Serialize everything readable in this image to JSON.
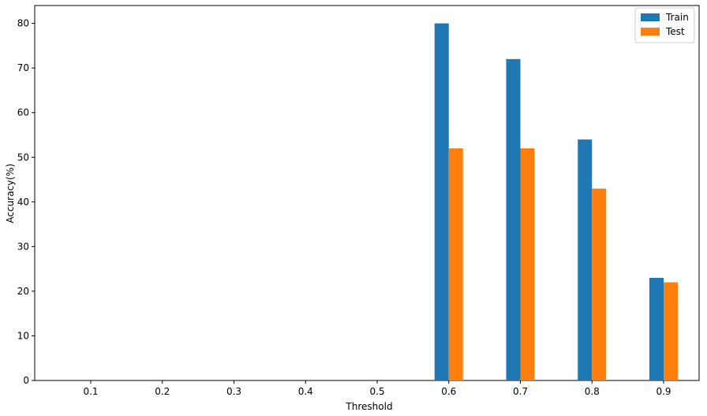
{
  "chart_data": {
    "type": "bar",
    "categories": [
      "0.1",
      "0.2",
      "0.3",
      "0.4",
      "0.5",
      "0.6",
      "0.7",
      "0.8",
      "0.9"
    ],
    "series": [
      {
        "name": "Train",
        "values": [
          0,
          0,
          0,
          0,
          0,
          80,
          72,
          54,
          23
        ],
        "color": "#1f77b4"
      },
      {
        "name": "Test",
        "values": [
          0,
          0,
          0,
          0,
          0,
          52,
          52,
          43,
          22
        ],
        "color": "#ff7f0e"
      }
    ],
    "title": "",
    "xlabel": "Threshold",
    "ylabel": "Accuracy(%)",
    "ylim": [
      0,
      84
    ],
    "yticks": [
      "0",
      "10",
      "20",
      "30",
      "40",
      "50",
      "60",
      "70",
      "80"
    ],
    "grid": false,
    "legend": "top-right"
  }
}
